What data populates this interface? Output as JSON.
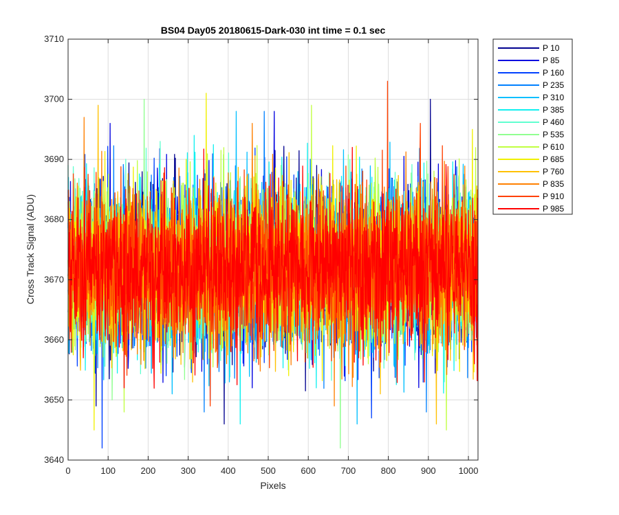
{
  "chart_data": {
    "type": "line",
    "title": "BS04 Day05 20180615-Dark-030 int time = 0.1 sec",
    "xlabel": "Pixels",
    "ylabel": "Cross Track Signal (ADU)",
    "xlim": [
      0,
      1024
    ],
    "ylim": [
      3640,
      3710
    ],
    "xticks": [
      0,
      100,
      200,
      300,
      400,
      500,
      600,
      700,
      800,
      900,
      1000
    ],
    "yticks": [
      3640,
      3650,
      3660,
      3670,
      3680,
      3690,
      3700,
      3710
    ],
    "xtick_labels": [
      "0",
      "100",
      "200",
      "300",
      "400",
      "500",
      "600",
      "700",
      "800",
      "900",
      "1000"
    ],
    "ytick_labels": [
      "3640",
      "3650",
      "3660",
      "3670",
      "3680",
      "3690",
      "3700",
      "3710"
    ],
    "grid": true,
    "legend_position": "outside-top-right",
    "x": {
      "start": 0,
      "end": 1023,
      "step": 1
    },
    "mean": 3672,
    "spread": 6.5,
    "series": [
      {
        "name": "P 10",
        "color": "#00008f",
        "seed": 11,
        "spikes": [
          [
            905,
            3700
          ],
          [
            390,
            3646
          ],
          [
            70,
            3649
          ]
        ]
      },
      {
        "name": "P 85",
        "color": "#0000e0",
        "seed": 23,
        "spikes": [
          [
            105,
            3696
          ],
          [
            515,
            3698
          ],
          [
            460,
            3652
          ]
        ]
      },
      {
        "name": "P 160",
        "color": "#0040ff",
        "seed": 37,
        "spikes": [
          [
            85,
            3642
          ],
          [
            758,
            3647
          ],
          [
            355,
            3650
          ]
        ]
      },
      {
        "name": "P 235",
        "color": "#0080ff",
        "seed": 41,
        "spikes": [
          [
            490,
            3698
          ],
          [
            340,
            3648
          ],
          [
            895,
            3648
          ]
        ]
      },
      {
        "name": "P 310",
        "color": "#00bfff",
        "seed": 53,
        "spikes": [
          [
            420,
            3698
          ],
          [
            722,
            3646
          ],
          [
            260,
            3651
          ]
        ]
      },
      {
        "name": "P 385",
        "color": "#10f0f0",
        "seed": 67,
        "spikes": [
          [
            315,
            3694
          ],
          [
            430,
            3646
          ],
          [
            620,
            3652
          ]
        ]
      },
      {
        "name": "P 460",
        "color": "#60ffd0",
        "seed": 79,
        "spikes": [
          [
            230,
            3693
          ],
          [
            550,
            3655
          ],
          [
            940,
            3653
          ]
        ]
      },
      {
        "name": "P 535",
        "color": "#90ff90",
        "seed": 83,
        "spikes": [
          [
            190,
            3700
          ],
          [
            680,
            3642
          ],
          [
            110,
            3650
          ]
        ]
      },
      {
        "name": "P 610",
        "color": "#c0ff40",
        "seed": 97,
        "spikes": [
          [
            608,
            3699
          ],
          [
            945,
            3645
          ],
          [
            140,
            3648
          ]
        ]
      },
      {
        "name": "P 685",
        "color": "#f0f000",
        "seed": 101,
        "spikes": [
          [
            345,
            3701
          ],
          [
            65,
            3645
          ],
          [
            1010,
            3695
          ]
        ]
      },
      {
        "name": "P 760",
        "color": "#ffc000",
        "seed": 113,
        "spikes": [
          [
            75,
            3699
          ],
          [
            920,
            3646
          ],
          [
            780,
            3651
          ]
        ]
      },
      {
        "name": "P 835",
        "color": "#ff8000",
        "seed": 127,
        "spikes": [
          [
            40,
            3697
          ],
          [
            460,
            3696
          ],
          [
            665,
            3649
          ]
        ]
      },
      {
        "name": "P 910",
        "color": "#ff4000",
        "seed": 131,
        "spikes": [
          [
            798,
            3703
          ],
          [
            355,
            3649
          ],
          [
            880,
            3696
          ]
        ]
      },
      {
        "name": "P 985",
        "color": "#ff0000",
        "seed": 139,
        "spikes": [
          [
            710,
            3692
          ],
          [
            140,
            3652
          ],
          [
            1015,
            3656
          ]
        ]
      }
    ]
  }
}
